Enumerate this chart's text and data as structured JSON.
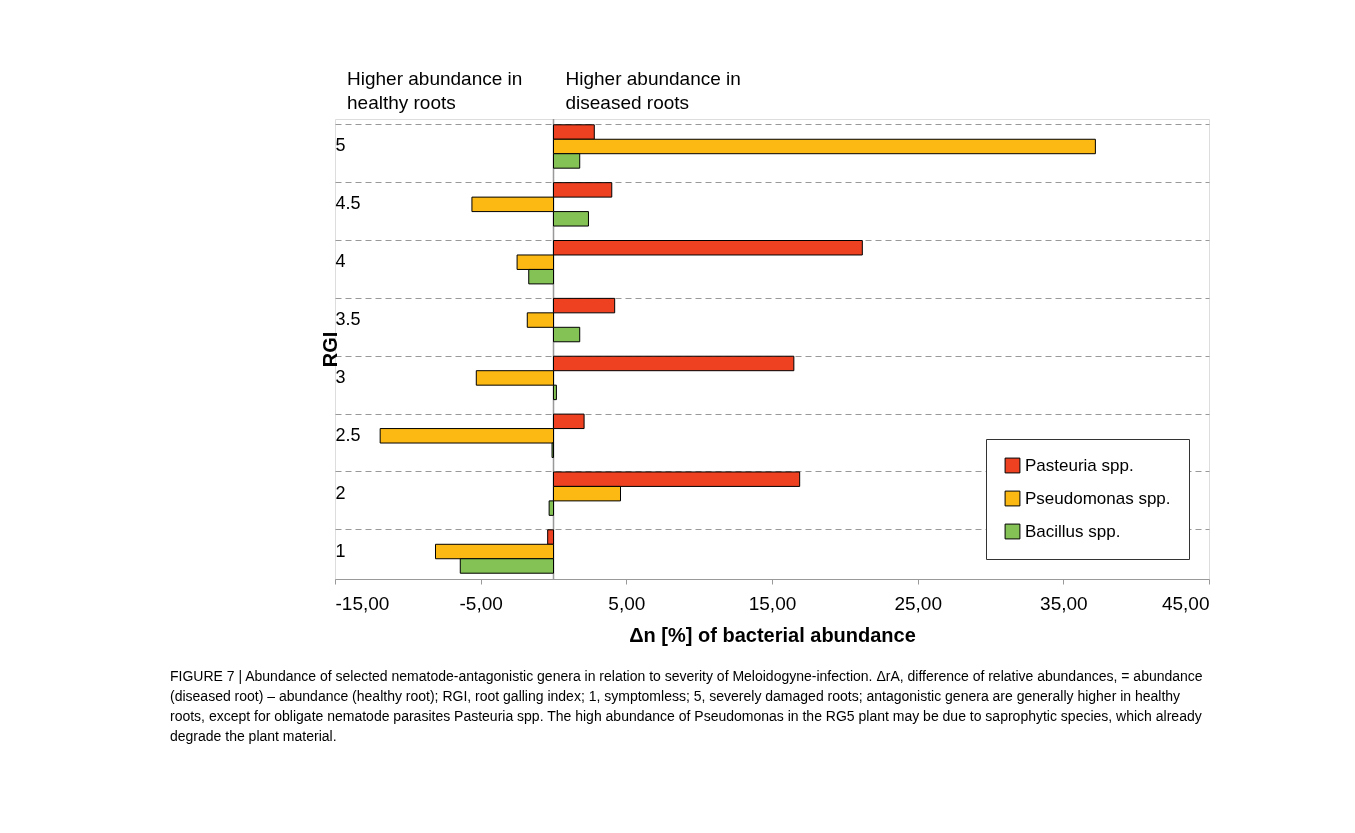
{
  "chart_data": {
    "type": "bar",
    "orientation": "horizontal",
    "ylabel": "RGI",
    "xlabel": "Δn [%] of bacterial abundance",
    "categories": [
      "5",
      "4.5",
      "4",
      "3.5",
      "3",
      "2.5",
      "2",
      "1"
    ],
    "series": [
      {
        "name": "Pasteuria spp.",
        "color": "#ee4122",
        "values": [
          2.8,
          4.0,
          21.2,
          4.2,
          16.5,
          2.1,
          16.9,
          -0.4
        ]
      },
      {
        "name": "Pseudomonas spp.",
        "color": "#fdb913",
        "values": [
          37.2,
          -5.6,
          -2.5,
          -1.8,
          -5.3,
          -11.9,
          4.6,
          -8.1
        ]
      },
      {
        "name": "Bacillus spp.",
        "color": "#84c255",
        "values": [
          1.8,
          2.4,
          -1.7,
          1.8,
          0.2,
          -0.1,
          -0.3,
          -6.4
        ]
      }
    ],
    "xlim": [
      -15,
      45
    ],
    "xticks": [
      {
        "value": -15,
        "label": "-15,00"
      },
      {
        "value": -5,
        "label": "-5,00"
      },
      {
        "value": 5,
        "label": "5,00"
      },
      {
        "value": 15,
        "label": "15,00"
      },
      {
        "value": 25,
        "label": "25,00"
      },
      {
        "value": 35,
        "label": "35,00"
      },
      {
        "value": 45,
        "label": "45,00"
      }
    ],
    "ref_lines": [
      {
        "axis": "x",
        "value": 0,
        "color": "#999999"
      }
    ],
    "grid": "y",
    "legend": "bottom right",
    "annotations": [
      "Higher abundance in healthy roots",
      "Higher abundance in diseased roots",
      "FIGURE 7 | Abundance of selected nematode-antagonistic genera in relation to severity of Meloidogyne-infection. ΔrA, difference of relative abundances, = abundance (diseased root) – abundance (healthy root); RGI, root galling index; 1, symptomless; 5, severely damaged roots; antagonistic genera are generally higher in healthy roots, except for obligate nematode parasites Pasteuria spp. The high abundance of Pseudomonas in the RG5 plant may be due to saprophytic species, which already degrade the plant material."
    ]
  }
}
